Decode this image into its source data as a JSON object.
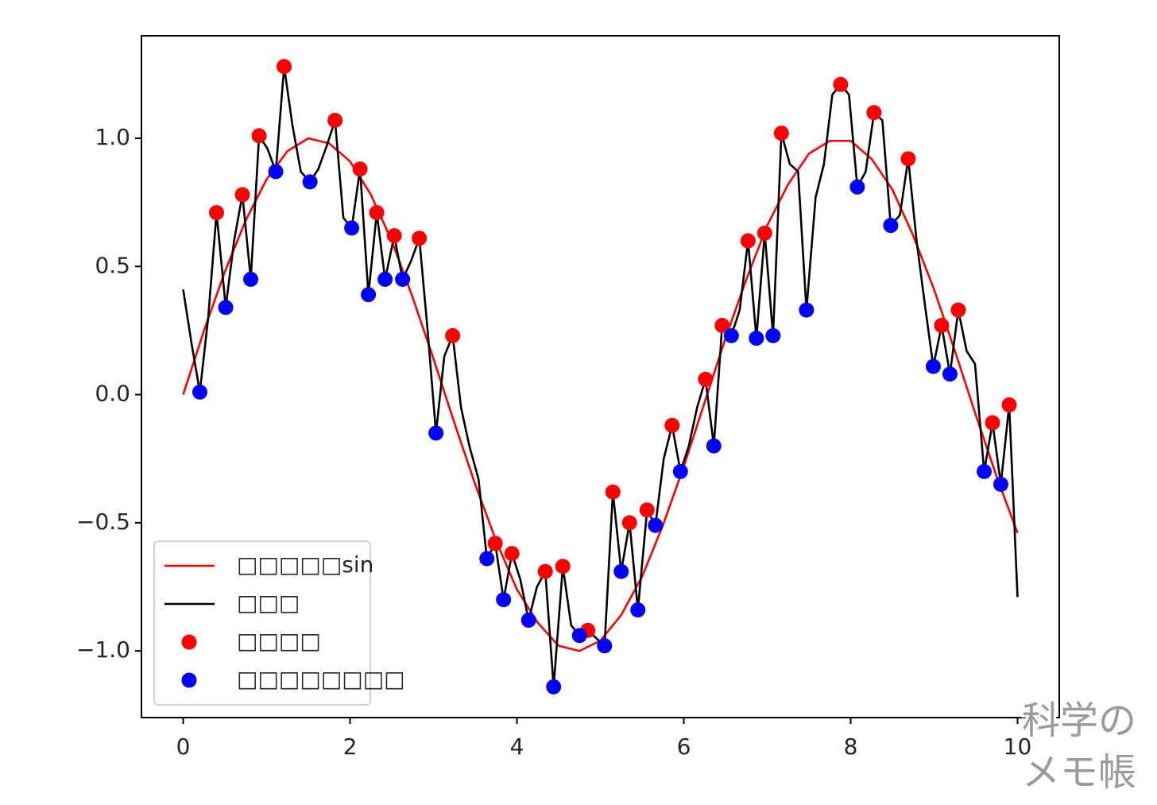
{
  "chart_data": {
    "type": "line",
    "xlim": [
      -0.5,
      10.5
    ],
    "ylim": [
      -1.26,
      1.4
    ],
    "xticks": [
      0,
      2,
      4,
      6,
      8,
      10
    ],
    "yticks": [
      {
        "value": -1.0,
        "label": "−1.0"
      },
      {
        "value": -0.5,
        "label": "−0.5"
      },
      {
        "value": 0,
        "label": "0.0"
      },
      {
        "value": 0.5,
        "label": "0.5"
      },
      {
        "value": 1.0,
        "label": "1.0"
      }
    ],
    "legend": "lower left",
    "series": [
      {
        "name": "□□□□□sin",
        "color": "#ff0000",
        "mode": "line",
        "x": [
          0,
          0.25,
          0.5,
          0.75,
          1,
          1.25,
          1.5,
          1.75,
          2,
          2.25,
          2.5,
          2.75,
          3,
          3.25,
          3.5,
          3.75,
          4,
          4.25,
          4.5,
          4.75,
          5,
          5.25,
          5.5,
          5.75,
          6,
          6.25,
          6.5,
          6.75,
          7,
          7.25,
          7.5,
          7.75,
          8,
          8.25,
          8.5,
          8.75,
          9,
          9.25,
          9.5,
          9.75,
          10
        ],
        "values": [
          0,
          0.25,
          0.48,
          0.68,
          0.84,
          0.95,
          1.0,
          0.98,
          0.91,
          0.78,
          0.6,
          0.38,
          0.14,
          -0.11,
          -0.35,
          -0.57,
          -0.76,
          -0.89,
          -0.98,
          -1.0,
          -0.96,
          -0.86,
          -0.71,
          -0.51,
          -0.28,
          -0.03,
          0.22,
          0.45,
          0.66,
          0.82,
          0.94,
          0.99,
          0.99,
          0.92,
          0.8,
          0.62,
          0.41,
          0.17,
          -0.08,
          -0.32,
          -0.54
        ]
      },
      {
        "name": "□□□",
        "color": "#000000",
        "mode": "line",
        "x": [
          0,
          0.1,
          0.2,
          0.3,
          0.4,
          0.51,
          0.61,
          0.71,
          0.81,
          0.91,
          1.01,
          1.11,
          1.21,
          1.31,
          1.41,
          1.52,
          1.62,
          1.72,
          1.82,
          1.92,
          2.02,
          2.12,
          2.22,
          2.32,
          2.42,
          2.53,
          2.63,
          2.73,
          2.83,
          2.93,
          3.03,
          3.13,
          3.23,
          3.33,
          3.43,
          3.54,
          3.64,
          3.74,
          3.84,
          3.94,
          4.04,
          4.14,
          4.24,
          4.34,
          4.44,
          4.55,
          4.65,
          4.75,
          4.85,
          4.95,
          5.05,
          5.15,
          5.25,
          5.35,
          5.45,
          5.56,
          5.66,
          5.76,
          5.86,
          5.96,
          6.06,
          6.16,
          6.26,
          6.36,
          6.46,
          6.57,
          6.67,
          6.77,
          6.87,
          6.97,
          7.07,
          7.17,
          7.27,
          7.37,
          7.47,
          7.58,
          7.68,
          7.78,
          7.88,
          7.98,
          8.08,
          8.18,
          8.28,
          8.38,
          8.48,
          8.59,
          8.69,
          8.79,
          8.89,
          8.99,
          9.09,
          9.19,
          9.29,
          9.39,
          9.49,
          9.6,
          9.7,
          9.8,
          9.9,
          10
        ],
        "values": [
          0.41,
          0.2,
          0.01,
          0.3,
          0.71,
          0.34,
          0.6,
          0.78,
          0.45,
          1.01,
          0.96,
          0.87,
          1.28,
          1.05,
          0.87,
          0.83,
          0.88,
          0.97,
          1.07,
          0.69,
          0.65,
          0.88,
          0.39,
          0.71,
          0.45,
          0.62,
          0.45,
          0.52,
          0.61,
          0.25,
          -0.15,
          0.15,
          0.23,
          -0.05,
          -0.2,
          -0.33,
          -0.64,
          -0.58,
          -0.8,
          -0.62,
          -0.72,
          -0.88,
          -0.75,
          -0.69,
          -1.14,
          -0.67,
          -0.9,
          -0.94,
          -0.92,
          -0.95,
          -0.98,
          -0.38,
          -0.69,
          -0.5,
          -0.84,
          -0.45,
          -0.51,
          -0.25,
          -0.12,
          -0.3,
          -0.2,
          -0.05,
          0.06,
          -0.2,
          0.27,
          0.23,
          0.33,
          0.6,
          0.22,
          0.63,
          0.23,
          1.02,
          0.9,
          0.87,
          0.33,
          0.77,
          0.9,
          1.17,
          1.21,
          1.17,
          0.81,
          0.87,
          1.1,
          1.07,
          0.66,
          0.7,
          0.92,
          0.6,
          0.35,
          0.11,
          0.27,
          0.08,
          0.33,
          0.17,
          0.12,
          -0.3,
          -0.11,
          -0.35,
          -0.04,
          -0.79
        ]
      },
      {
        "name": "□□□□",
        "color": "#ff0000",
        "mode": "markers",
        "x": [
          0.4,
          0.71,
          0.91,
          1.21,
          1.82,
          2.12,
          2.32,
          2.53,
          2.83,
          3.23,
          3.74,
          3.94,
          4.34,
          4.55,
          4.85,
          5.15,
          5.35,
          5.56,
          5.86,
          6.26,
          6.46,
          6.77,
          6.97,
          7.17,
          7.88,
          8.28,
          8.69,
          9.09,
          9.29,
          9.7,
          9.9
        ],
        "values": [
          0.71,
          0.78,
          1.01,
          1.28,
          1.07,
          0.88,
          0.71,
          0.62,
          0.61,
          0.23,
          -0.58,
          -0.62,
          -0.69,
          -0.67,
          -0.92,
          -0.38,
          -0.5,
          -0.45,
          -0.12,
          0.06,
          0.27,
          0.6,
          0.63,
          1.02,
          1.21,
          1.1,
          0.92,
          0.27,
          0.33,
          -0.11,
          -0.04
        ]
      },
      {
        "name": "□□□□□□□□",
        "color": "#0000ff",
        "mode": "markers",
        "x": [
          0.2,
          0.51,
          0.81,
          1.11,
          1.52,
          2.02,
          2.22,
          2.42,
          2.63,
          3.03,
          3.64,
          3.84,
          4.14,
          4.44,
          4.75,
          5.05,
          5.25,
          5.45,
          5.66,
          5.96,
          6.36,
          6.57,
          6.87,
          7.07,
          7.47,
          8.08,
          8.48,
          8.99,
          9.19,
          9.6,
          9.8
        ],
        "values": [
          0.01,
          0.34,
          0.45,
          0.87,
          0.83,
          0.65,
          0.39,
          0.45,
          0.45,
          -0.15,
          -0.64,
          -0.8,
          -0.88,
          -1.14,
          -0.94,
          -0.98,
          -0.69,
          -0.84,
          -0.51,
          -0.3,
          -0.2,
          0.23,
          0.22,
          0.23,
          0.33,
          0.81,
          0.66,
          0.11,
          0.08,
          -0.3,
          -0.35
        ]
      }
    ]
  },
  "watermark": [
    "科学の",
    "メモ帳"
  ]
}
